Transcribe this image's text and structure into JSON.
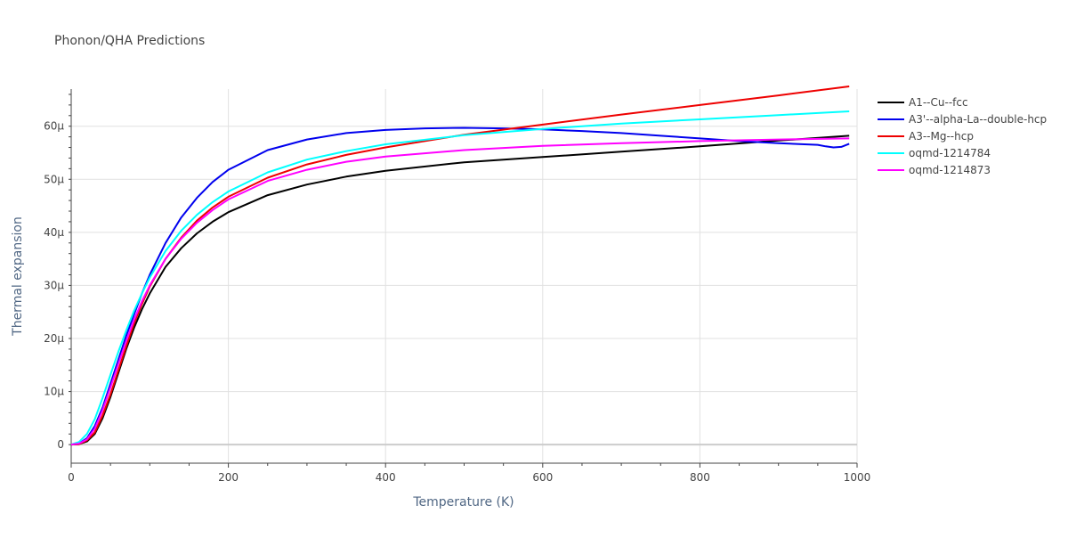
{
  "chart_data": {
    "type": "line",
    "title": "Phonon/QHA Predictions",
    "xlabel": "Temperature (K)",
    "ylabel": "Thermal expansion",
    "xlim": [
      0,
      1000
    ],
    "ylim": [
      -3.5e-06,
      6.7e-05
    ],
    "x_ticks": [
      {
        "value": 0,
        "label": "0"
      },
      {
        "value": 200,
        "label": "200"
      },
      {
        "value": 400,
        "label": "400"
      },
      {
        "value": 600,
        "label": "600"
      },
      {
        "value": 800,
        "label": "800"
      },
      {
        "value": 1000,
        "label": "1000"
      }
    ],
    "y_ticks": [
      {
        "value": 0,
        "label": "0"
      },
      {
        "value": 1e-05,
        "label": "10μ"
      },
      {
        "value": 2e-05,
        "label": "20μ"
      },
      {
        "value": 3e-05,
        "label": "30μ"
      },
      {
        "value": 4e-05,
        "label": "40μ"
      },
      {
        "value": 5e-05,
        "label": "50μ"
      },
      {
        "value": 6e-05,
        "label": "60μ"
      }
    ],
    "grid": true,
    "legend_position": "top-right, outside plot",
    "series": [
      {
        "name": "A1--Cu--fcc",
        "color": "#000000",
        "points": [
          [
            0,
            0
          ],
          [
            10,
            1e-07
          ],
          [
            20,
            6e-07
          ],
          [
            30,
            2e-06
          ],
          [
            40,
            5e-06
          ],
          [
            50,
            9e-06
          ],
          [
            60,
            1.35e-05
          ],
          [
            70,
            1.8e-05
          ],
          [
            80,
            2.2e-05
          ],
          [
            90,
            2.55e-05
          ],
          [
            100,
            2.85e-05
          ],
          [
            120,
            3.35e-05
          ],
          [
            140,
            3.7e-05
          ],
          [
            160,
            3.98e-05
          ],
          [
            180,
            4.2e-05
          ],
          [
            200,
            4.38e-05
          ],
          [
            250,
            4.7e-05
          ],
          [
            300,
            4.9e-05
          ],
          [
            350,
            5.05e-05
          ],
          [
            400,
            5.16e-05
          ],
          [
            500,
            5.32e-05
          ],
          [
            600,
            5.42e-05
          ],
          [
            700,
            5.52e-05
          ],
          [
            800,
            5.62e-05
          ],
          [
            900,
            5.73e-05
          ],
          [
            990,
            5.82e-05
          ]
        ]
      },
      {
        "name": "A3'--alpha-La--double-hcp",
        "color": "#0000ee",
        "points": [
          [
            0,
            0
          ],
          [
            10,
            2e-07
          ],
          [
            20,
            1.2e-06
          ],
          [
            30,
            3.5e-06
          ],
          [
            40,
            7e-06
          ],
          [
            50,
            1.15e-05
          ],
          [
            60,
            1.6e-05
          ],
          [
            70,
            2.05e-05
          ],
          [
            80,
            2.45e-05
          ],
          [
            90,
            2.85e-05
          ],
          [
            100,
            3.2e-05
          ],
          [
            120,
            3.8e-05
          ],
          [
            140,
            4.28e-05
          ],
          [
            160,
            4.65e-05
          ],
          [
            180,
            4.95e-05
          ],
          [
            200,
            5.18e-05
          ],
          [
            250,
            5.55e-05
          ],
          [
            300,
            5.75e-05
          ],
          [
            350,
            5.87e-05
          ],
          [
            400,
            5.93e-05
          ],
          [
            450,
            5.96e-05
          ],
          [
            500,
            5.97e-05
          ],
          [
            550,
            5.96e-05
          ],
          [
            600,
            5.94e-05
          ],
          [
            650,
            5.91e-05
          ],
          [
            700,
            5.87e-05
          ],
          [
            750,
            5.82e-05
          ],
          [
            800,
            5.77e-05
          ],
          [
            850,
            5.72e-05
          ],
          [
            900,
            5.68e-05
          ],
          [
            950,
            5.65e-05
          ],
          [
            960,
            5.62e-05
          ],
          [
            970,
            5.6e-05
          ],
          [
            980,
            5.61e-05
          ],
          [
            990,
            5.67e-05
          ]
        ]
      },
      {
        "name": "A3--Mg--hcp",
        "color": "#ee0000",
        "points": [
          [
            0,
            0
          ],
          [
            10,
            1e-07
          ],
          [
            20,
            8e-07
          ],
          [
            30,
            2.3e-06
          ],
          [
            40,
            5.5e-06
          ],
          [
            50,
            9.5e-06
          ],
          [
            60,
            1.4e-05
          ],
          [
            70,
            1.85e-05
          ],
          [
            80,
            2.28e-05
          ],
          [
            90,
            2.65e-05
          ],
          [
            100,
            2.98e-05
          ],
          [
            120,
            3.5e-05
          ],
          [
            140,
            3.9e-05
          ],
          [
            160,
            4.22e-05
          ],
          [
            180,
            4.47e-05
          ],
          [
            200,
            4.67e-05
          ],
          [
            250,
            5.03e-05
          ],
          [
            300,
            5.28e-05
          ],
          [
            350,
            5.46e-05
          ],
          [
            400,
            5.6e-05
          ],
          [
            500,
            5.84e-05
          ],
          [
            600,
            6.03e-05
          ],
          [
            700,
            6.22e-05
          ],
          [
            800,
            6.4e-05
          ],
          [
            900,
            6.58e-05
          ],
          [
            990,
            6.75e-05
          ]
        ]
      },
      {
        "name": "oqmd-1214784",
        "color": "#00ffff",
        "points": [
          [
            0,
            0
          ],
          [
            10,
            5e-07
          ],
          [
            20,
            2e-06
          ],
          [
            30,
            4.8e-06
          ],
          [
            40,
            8.8e-06
          ],
          [
            50,
            1.32e-05
          ],
          [
            60,
            1.75e-05
          ],
          [
            70,
            2.15e-05
          ],
          [
            80,
            2.52e-05
          ],
          [
            90,
            2.85e-05
          ],
          [
            100,
            3.15e-05
          ],
          [
            120,
            3.65e-05
          ],
          [
            140,
            4.03e-05
          ],
          [
            160,
            4.33e-05
          ],
          [
            180,
            4.57e-05
          ],
          [
            200,
            4.77e-05
          ],
          [
            250,
            5.13e-05
          ],
          [
            300,
            5.37e-05
          ],
          [
            350,
            5.53e-05
          ],
          [
            400,
            5.66e-05
          ],
          [
            500,
            5.83e-05
          ],
          [
            600,
            5.95e-05
          ],
          [
            700,
            6.05e-05
          ],
          [
            800,
            6.13e-05
          ],
          [
            900,
            6.21e-05
          ],
          [
            990,
            6.28e-05
          ]
        ]
      },
      {
        "name": "oqmd-1214873",
        "color": "#ff00ff",
        "points": [
          [
            0,
            0
          ],
          [
            10,
            2e-07
          ],
          [
            20,
            1e-06
          ],
          [
            30,
            3e-06
          ],
          [
            40,
            6.5e-06
          ],
          [
            50,
            1.08e-05
          ],
          [
            60,
            1.52e-05
          ],
          [
            70,
            1.95e-05
          ],
          [
            80,
            2.35e-05
          ],
          [
            90,
            2.7e-05
          ],
          [
            100,
            3e-05
          ],
          [
            120,
            3.5e-05
          ],
          [
            140,
            3.88e-05
          ],
          [
            160,
            4.18e-05
          ],
          [
            180,
            4.42e-05
          ],
          [
            200,
            4.62e-05
          ],
          [
            250,
            4.97e-05
          ],
          [
            300,
            5.18e-05
          ],
          [
            350,
            5.33e-05
          ],
          [
            400,
            5.43e-05
          ],
          [
            500,
            5.55e-05
          ],
          [
            600,
            5.63e-05
          ],
          [
            700,
            5.68e-05
          ],
          [
            800,
            5.72e-05
          ],
          [
            900,
            5.75e-05
          ],
          [
            990,
            5.77e-05
          ]
        ]
      }
    ]
  }
}
